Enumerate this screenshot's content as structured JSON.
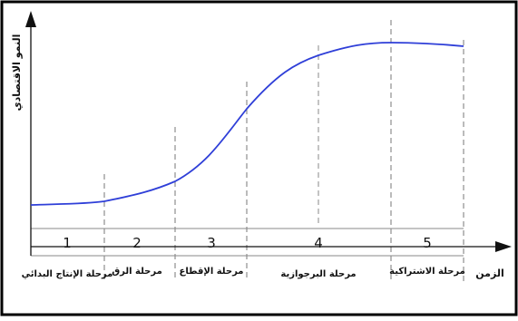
{
  "chart_data": {
    "type": "line",
    "ylabel": "النمو الاقتصادي",
    "xlabel": "الزمن",
    "stages": [
      {
        "number": "1",
        "label": "مرحلة الإنتاج البدائي"
      },
      {
        "number": "2",
        "label": "مرحلة الرق"
      },
      {
        "number": "3",
        "label": "مرحلة الإقطاع"
      },
      {
        "number": "4",
        "label": "مرحلة البرجوازية"
      },
      {
        "number": "5",
        "label": "مرحلة الاشتراكية"
      }
    ],
    "colors": {
      "curve": "#2f3fd8",
      "axes": "#111111",
      "dashes": "#777777",
      "border": "#000000"
    }
  }
}
